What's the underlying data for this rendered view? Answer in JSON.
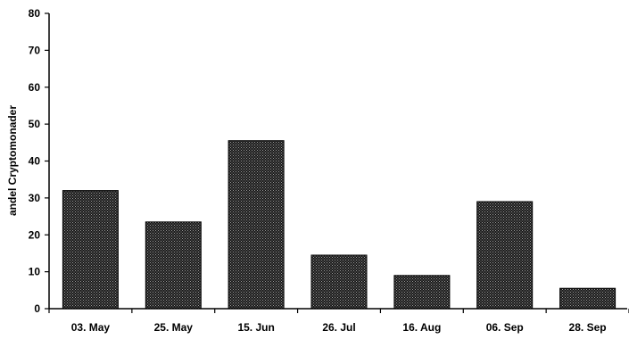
{
  "chart_data": {
    "type": "bar",
    "title": "",
    "xlabel": "",
    "ylabel": "andel Cryptomonader",
    "categories": [
      "03. May",
      "25. May",
      "15. Jun",
      "26. Jul",
      "16. Aug",
      "06. Sep",
      "28. Sep"
    ],
    "values": [
      32,
      23.5,
      45.5,
      14.5,
      9,
      29,
      5.5
    ],
    "ylim": [
      0,
      80
    ],
    "yticks": [
      0,
      10,
      20,
      30,
      40,
      50,
      60,
      70,
      80
    ],
    "grid": false,
    "legend": "none",
    "bar_fill": "#3a3a3a",
    "bar_pattern": "dotted"
  }
}
